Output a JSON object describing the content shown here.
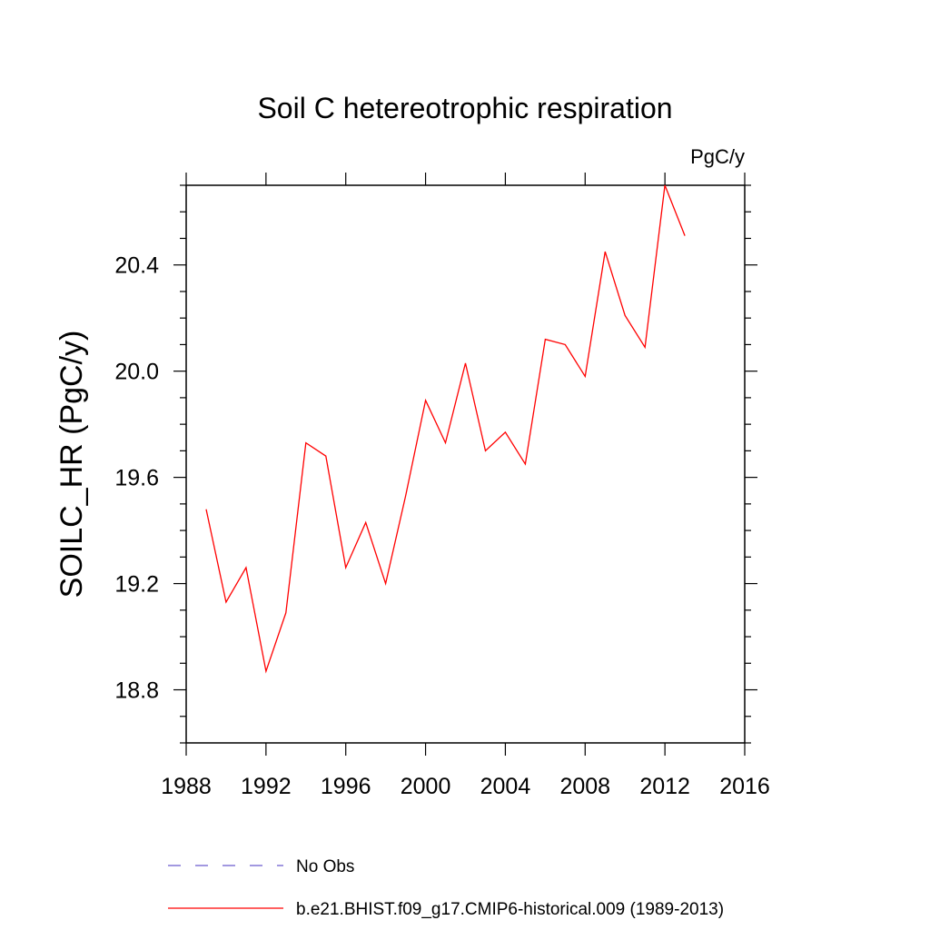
{
  "chart_data": {
    "type": "line",
    "title": "Soil C hetereotrophic respiration",
    "units": "PgC/y",
    "xlabel": "",
    "ylabel": "SOILC_HR  (PgC/y)",
    "xlim": [
      1988,
      2016
    ],
    "ylim": [
      18.6,
      20.7
    ],
    "xticks": [
      1988,
      1992,
      1996,
      2000,
      2004,
      2008,
      2012,
      2016
    ],
    "xtick_labels": [
      "1988",
      "1992",
      "1996",
      "2000",
      "2004",
      "2008",
      "2012",
      "2016"
    ],
    "yticks": [
      18.8,
      19.2,
      19.6,
      20.0,
      20.4
    ],
    "ytick_labels": [
      "18.8",
      "19.2",
      "19.6",
      "20.0",
      "20.4"
    ],
    "grid": false,
    "legend_position": "bottom",
    "series": [
      {
        "name": "b.e21.BHIST.f09_g17.CMIP6-historical.009 (1989-2013)",
        "color": "#ff0000",
        "style": "solid",
        "x": [
          1989,
          1990,
          1991,
          1992,
          1993,
          1994,
          1995,
          1996,
          1997,
          1998,
          1999,
          2000,
          2001,
          2002,
          2003,
          2004,
          2005,
          2006,
          2007,
          2008,
          2009,
          2010,
          2011,
          2012,
          2013
        ],
        "y": [
          19.48,
          19.13,
          19.26,
          18.87,
          19.09,
          19.73,
          19.68,
          19.26,
          19.43,
          19.2,
          19.53,
          19.89,
          19.73,
          20.03,
          19.7,
          19.77,
          19.65,
          20.12,
          20.1,
          19.98,
          20.45,
          20.21,
          20.09,
          20.7,
          20.51
        ]
      }
    ],
    "legend": [
      {
        "label": "No Obs",
        "color": "#6a5acd",
        "style": "dashed"
      },
      {
        "label": "b.e21.BHIST.f09_g17.CMIP6-historical.009 (1989-2013)",
        "color": "#ff0000",
        "style": "solid"
      }
    ]
  }
}
